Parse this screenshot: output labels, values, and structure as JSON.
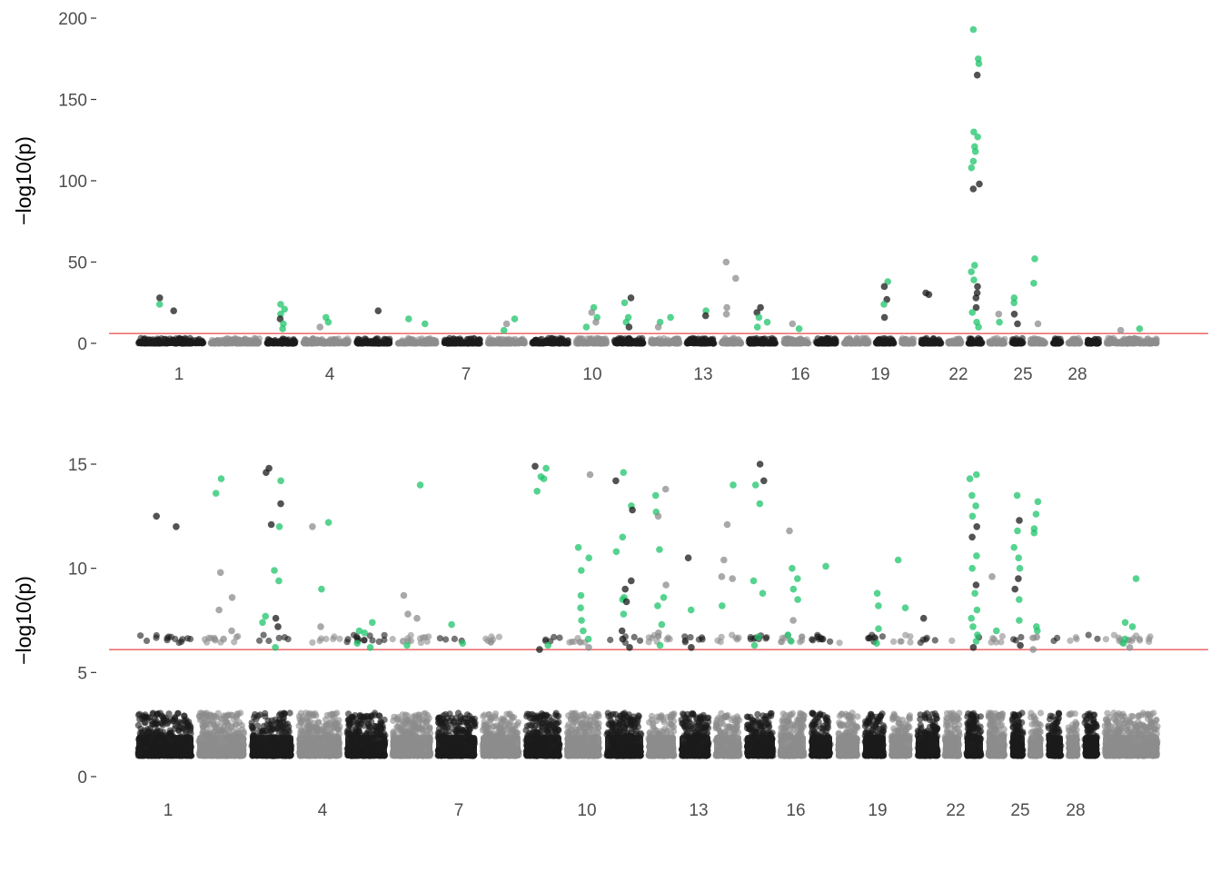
{
  "chart_data": [
    {
      "type": "scatter",
      "subtype": "manhattan",
      "ylabel": "−log10(p)",
      "ylim": [
        -10,
        202
      ],
      "yticks": [
        0,
        50,
        100,
        150,
        200
      ],
      "xticks": [
        "1",
        "4",
        "7",
        "10",
        "13",
        "16",
        "19",
        "22",
        "25",
        "28"
      ],
      "threshold": 6.1,
      "chromosome_count": 30,
      "colors": {
        "dark": "#1a1a1a",
        "light": "#8c8c8c",
        "significant": "#1fc46b",
        "threshold": "#e41a1c"
      },
      "grid": false,
      "background_max": 4.5,
      "significant_points": [
        [
          1,
          28
        ],
        [
          1,
          24
        ],
        [
          1,
          20
        ],
        [
          3,
          24
        ],
        [
          3,
          21
        ],
        [
          3,
          18
        ],
        [
          3,
          15
        ],
        [
          3,
          12
        ],
        [
          3,
          9
        ],
        [
          4,
          16
        ],
        [
          4,
          13
        ],
        [
          4,
          10
        ],
        [
          5,
          20
        ],
        [
          6,
          15
        ],
        [
          6,
          12
        ],
        [
          8,
          15
        ],
        [
          8,
          12
        ],
        [
          8,
          8
        ],
        [
          10,
          22
        ],
        [
          10,
          19
        ],
        [
          10,
          16
        ],
        [
          10,
          13
        ],
        [
          10,
          10
        ],
        [
          11,
          28
        ],
        [
          11,
          25
        ],
        [
          11,
          16
        ],
        [
          11,
          13
        ],
        [
          11,
          10
        ],
        [
          12,
          16
        ],
        [
          12,
          13
        ],
        [
          12,
          10
        ],
        [
          13,
          20
        ],
        [
          13,
          17
        ],
        [
          14,
          50
        ],
        [
          14,
          22
        ],
        [
          14,
          18
        ],
        [
          14,
          40
        ],
        [
          15,
          22
        ],
        [
          15,
          19
        ],
        [
          15,
          16
        ],
        [
          15,
          13
        ],
        [
          15,
          10
        ],
        [
          16,
          12
        ],
        [
          16,
          9
        ],
        [
          19,
          38
        ],
        [
          19,
          35
        ],
        [
          19,
          27
        ],
        [
          19,
          24
        ],
        [
          19,
          16
        ],
        [
          21,
          31
        ],
        [
          21,
          30
        ],
        [
          23,
          193
        ],
        [
          23,
          175
        ],
        [
          23,
          172
        ],
        [
          23,
          165
        ],
        [
          23,
          130
        ],
        [
          23,
          127
        ],
        [
          23,
          121
        ],
        [
          23,
          118
        ],
        [
          23,
          112
        ],
        [
          23,
          108
        ],
        [
          23,
          98
        ],
        [
          23,
          95
        ],
        [
          23,
          48
        ],
        [
          23,
          44
        ],
        [
          23,
          39
        ],
        [
          23,
          35
        ],
        [
          23,
          31
        ],
        [
          23,
          28
        ],
        [
          23,
          22
        ],
        [
          23,
          19
        ],
        [
          23,
          13
        ],
        [
          23,
          10
        ],
        [
          24,
          18
        ],
        [
          24,
          13
        ],
        [
          25,
          28
        ],
        [
          25,
          25
        ],
        [
          25,
          18
        ],
        [
          25,
          12
        ],
        [
          26,
          52
        ],
        [
          26,
          37
        ],
        [
          26,
          12
        ],
        [
          30,
          9
        ],
        [
          30,
          8
        ]
      ]
    },
    {
      "type": "scatter",
      "subtype": "manhattan",
      "ylabel": "−log10(p)",
      "ylim": [
        -0.3,
        16
      ],
      "yticks": [
        0,
        5,
        10,
        15
      ],
      "xticks": [
        "1",
        "4",
        "7",
        "10",
        "13",
        "16",
        "19",
        "22",
        "25",
        "28"
      ],
      "threshold": 6.1,
      "chromosome_count": 30,
      "colors": {
        "dark": "#1a1a1a",
        "light": "#8c8c8c",
        "significant": "#1fc46b",
        "threshold": "#e41a1c"
      },
      "grid": false,
      "background_max": 5.8,
      "significant_points": [
        [
          1,
          12.5
        ],
        [
          1,
          12.0
        ],
        [
          2,
          7.0
        ],
        [
          2,
          6.6
        ],
        [
          2,
          13.6
        ],
        [
          2,
          14.3
        ],
        [
          2,
          9.8
        ],
        [
          2,
          8.6
        ],
        [
          2,
          8.0
        ],
        [
          3,
          7.4
        ],
        [
          3,
          14.8
        ],
        [
          3,
          14.6
        ],
        [
          3,
          14.2
        ],
        [
          3,
          13.1
        ],
        [
          3,
          12.1
        ],
        [
          3,
          12.0
        ],
        [
          3,
          9.9
        ],
        [
          3,
          9.4
        ],
        [
          3,
          7.7
        ],
        [
          3,
          7.6
        ],
        [
          3,
          7.2
        ],
        [
          3,
          6.2
        ],
        [
          4,
          12.2
        ],
        [
          4,
          12.0
        ],
        [
          4,
          9.0
        ],
        [
          4,
          7.2
        ],
        [
          5,
          6.9
        ],
        [
          5,
          7.0
        ],
        [
          5,
          6.4
        ],
        [
          5,
          6.2
        ],
        [
          5,
          7.4
        ],
        [
          6,
          8.7
        ],
        [
          6,
          14.0
        ],
        [
          6,
          7.8
        ],
        [
          6,
          7.6
        ],
        [
          6,
          6.5
        ],
        [
          6,
          6.3
        ],
        [
          7,
          7.3
        ],
        [
          7,
          6.4
        ],
        [
          9,
          6.3
        ],
        [
          9,
          6.1
        ],
        [
          9,
          14.9
        ],
        [
          9,
          14.8
        ],
        [
          9,
          14.4
        ],
        [
          9,
          14.3
        ],
        [
          9,
          13.7
        ],
        [
          10,
          14.5
        ],
        [
          10,
          11.0
        ],
        [
          10,
          10.5
        ],
        [
          10,
          9.9
        ],
        [
          10,
          8.7
        ],
        [
          10,
          8.1
        ],
        [
          10,
          7.5
        ],
        [
          10,
          7.0
        ],
        [
          10,
          6.6
        ],
        [
          10,
          6.2
        ],
        [
          11,
          14.6
        ],
        [
          11,
          14.2
        ],
        [
          11,
          13.0
        ],
        [
          11,
          12.8
        ],
        [
          11,
          11.5
        ],
        [
          11,
          10.8
        ],
        [
          11,
          9.4
        ],
        [
          11,
          9.0
        ],
        [
          11,
          8.5
        ],
        [
          11,
          7.8
        ],
        [
          11,
          7.0
        ],
        [
          11,
          6.6
        ],
        [
          11,
          6.2
        ],
        [
          11,
          8.6
        ],
        [
          11,
          8.4
        ],
        [
          12,
          13.8
        ],
        [
          12,
          13.5
        ],
        [
          12,
          12.7
        ],
        [
          12,
          12.5
        ],
        [
          12,
          10.9
        ],
        [
          12,
          9.2
        ],
        [
          12,
          8.6
        ],
        [
          12,
          8.2
        ],
        [
          12,
          7.3
        ],
        [
          12,
          6.9
        ],
        [
          12,
          6.3
        ],
        [
          13,
          10.5
        ],
        [
          13,
          8.0
        ],
        [
          13,
          6.2
        ],
        [
          14,
          14.0
        ],
        [
          14,
          12.1
        ],
        [
          14,
          10.4
        ],
        [
          14,
          9.6
        ],
        [
          14,
          8.2
        ],
        [
          14,
          9.5
        ],
        [
          15,
          15.0
        ],
        [
          15,
          14.2
        ],
        [
          15,
          13.1
        ],
        [
          15,
          9.4
        ],
        [
          15,
          8.8
        ],
        [
          15,
          6.7
        ],
        [
          15,
          6.3
        ],
        [
          15,
          14.0
        ],
        [
          16,
          11.8
        ],
        [
          16,
          10.0
        ],
        [
          16,
          9.5
        ],
        [
          16,
          8.5
        ],
        [
          16,
          7.5
        ],
        [
          16,
          6.8
        ],
        [
          16,
          6.5
        ],
        [
          16,
          9.0
        ],
        [
          17,
          10.1
        ],
        [
          17,
          6.7
        ],
        [
          17,
          6.6
        ],
        [
          19,
          8.8
        ],
        [
          19,
          8.2
        ],
        [
          19,
          7.1
        ],
        [
          19,
          6.4
        ],
        [
          20,
          10.4
        ],
        [
          20,
          8.1
        ],
        [
          21,
          7.6
        ],
        [
          23,
          14.5
        ],
        [
          23,
          14.3
        ],
        [
          23,
          13.5
        ],
        [
          23,
          13.0
        ],
        [
          23,
          12.5
        ],
        [
          23,
          12.0
        ],
        [
          23,
          11.5
        ],
        [
          23,
          10.6
        ],
        [
          23,
          10.0
        ],
        [
          23,
          9.2
        ],
        [
          23,
          8.8
        ],
        [
          23,
          8.0
        ],
        [
          23,
          7.6
        ],
        [
          23,
          7.2
        ],
        [
          23,
          6.8
        ],
        [
          23,
          6.5
        ],
        [
          23,
          6.2
        ],
        [
          24,
          9.6
        ],
        [
          24,
          7.0
        ],
        [
          25,
          13.5
        ],
        [
          25,
          12.3
        ],
        [
          25,
          11.8
        ],
        [
          25,
          11.0
        ],
        [
          25,
          10.5
        ],
        [
          25,
          10.0
        ],
        [
          25,
          9.5
        ],
        [
          25,
          9.0
        ],
        [
          25,
          8.5
        ],
        [
          25,
          7.5
        ],
        [
          25,
          6.3
        ],
        [
          26,
          13.2
        ],
        [
          26,
          12.6
        ],
        [
          26,
          11.9
        ],
        [
          26,
          11.7
        ],
        [
          26,
          7.2
        ],
        [
          26,
          7.0
        ],
        [
          26,
          6.7
        ],
        [
          26,
          6.1
        ],
        [
          30,
          9.5
        ],
        [
          30,
          7.4
        ],
        [
          30,
          7.2
        ],
        [
          30,
          6.6
        ],
        [
          30,
          6.4
        ],
        [
          30,
          6.2
        ]
      ]
    }
  ]
}
